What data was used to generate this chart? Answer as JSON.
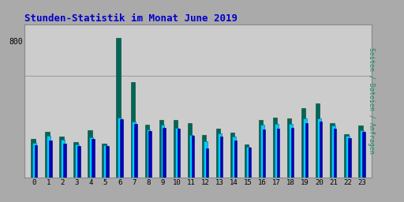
{
  "title": "Stunden-Statistik im Monat June 2019",
  "title_color": "#0000cc",
  "title_fontsize": 9,
  "ylabel_right": "Seiten / Dateien / Anfragen",
  "ylabel_right_color": "#008866",
  "hours": [
    0,
    1,
    2,
    3,
    4,
    5,
    6,
    7,
    8,
    9,
    10,
    11,
    12,
    13,
    14,
    15,
    16,
    17,
    18,
    19,
    20,
    21,
    22,
    23
  ],
  "seiten": [
    230,
    270,
    240,
    210,
    280,
    200,
    820,
    560,
    310,
    340,
    340,
    320,
    250,
    290,
    265,
    195,
    340,
    355,
    350,
    410,
    435,
    320,
    255,
    305
  ],
  "dateien": [
    205,
    245,
    225,
    195,
    235,
    190,
    355,
    330,
    285,
    310,
    295,
    250,
    215,
    260,
    240,
    180,
    310,
    315,
    315,
    350,
    350,
    305,
    245,
    280
  ],
  "anfragen": [
    192,
    218,
    200,
    185,
    228,
    188,
    342,
    315,
    272,
    295,
    288,
    248,
    172,
    242,
    218,
    175,
    285,
    290,
    292,
    320,
    330,
    288,
    232,
    268
  ],
  "color_seiten": "#006655",
  "color_dateien": "#00ccff",
  "color_anfragen": "#0000bb",
  "ylim": [
    0,
    900
  ],
  "ytick_val": 800,
  "ytick_pos": 800,
  "bg_color": "#aaaaaa",
  "plot_bg_color": "#cccccc",
  "border_color": "#888888",
  "bar_width": 0.27,
  "font_family": "monospace"
}
